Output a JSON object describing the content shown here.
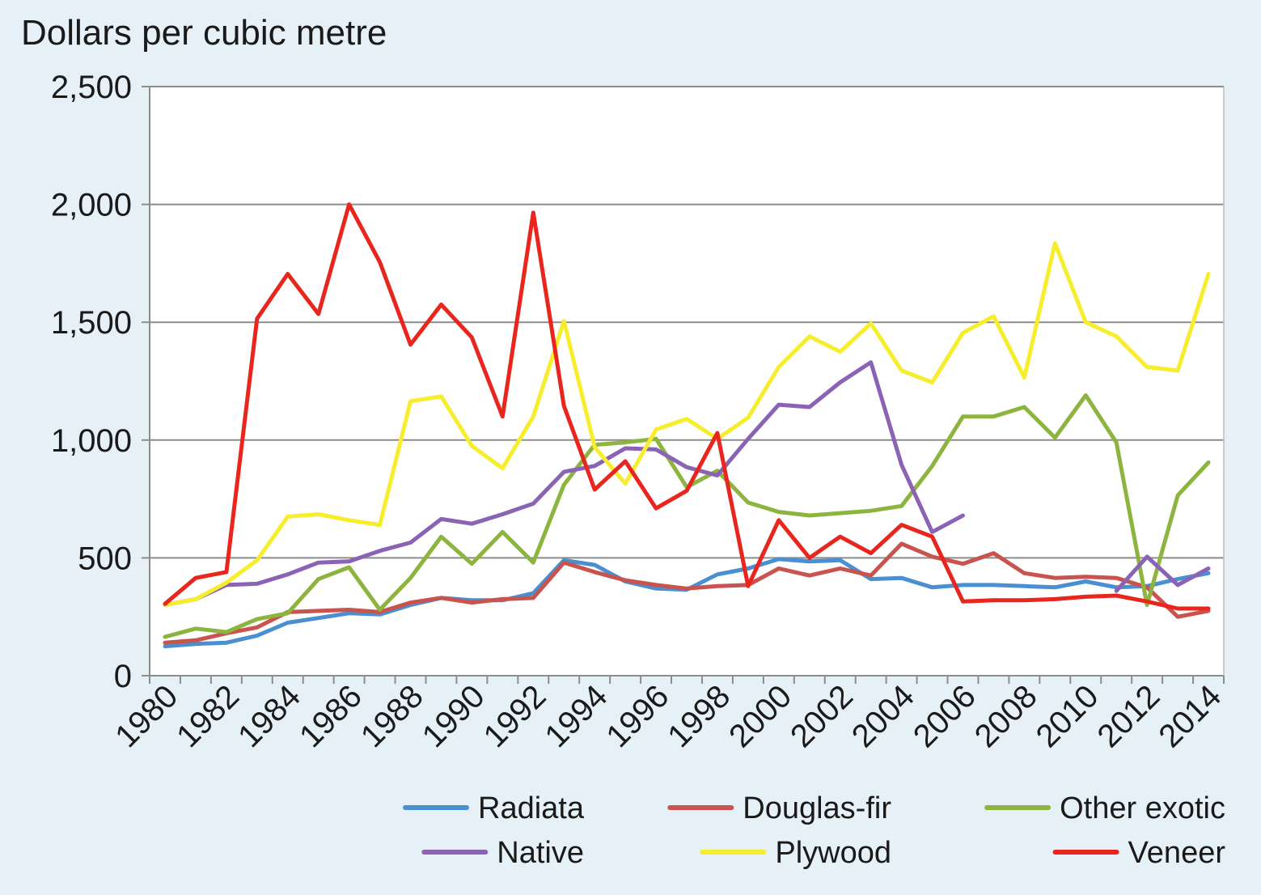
{
  "chart_data": {
    "type": "line",
    "title": "",
    "ylabel": "Dollars per cubic metre",
    "xlabel": "",
    "ylim": [
      0,
      2500
    ],
    "yticks": [
      0,
      500,
      1000,
      1500,
      2000,
      2500
    ],
    "ytick_labels": [
      "0",
      "500",
      "1,000",
      "1,500",
      "2,000",
      "2,500"
    ],
    "x": [
      1980,
      1981,
      1982,
      1983,
      1984,
      1985,
      1986,
      1987,
      1988,
      1989,
      1990,
      1991,
      1992,
      1993,
      1994,
      1995,
      1996,
      1997,
      1998,
      1999,
      2000,
      2001,
      2002,
      2003,
      2004,
      2005,
      2006,
      2007,
      2008,
      2009,
      2010,
      2011,
      2012,
      2013,
      2014
    ],
    "xtick_labels": [
      "1980",
      "1982",
      "1984",
      "1986",
      "1988",
      "1990",
      "1992",
      "1994",
      "1996",
      "1998",
      "2000",
      "2002",
      "2004",
      "2006",
      "2008",
      "2010",
      "2012",
      "2014"
    ],
    "grid": true,
    "legend_position": "bottom",
    "series": [
      {
        "name": "Radiata",
        "color": "#4a8fd1",
        "values": [
          125,
          135,
          140,
          170,
          225,
          245,
          265,
          260,
          300,
          330,
          320,
          320,
          350,
          490,
          470,
          400,
          370,
          365,
          430,
          455,
          495,
          485,
          490,
          410,
          415,
          375,
          385,
          385,
          380,
          375,
          400,
          375,
          380,
          410,
          435
        ]
      },
      {
        "name": "Douglas-fir",
        "color": "#c9534f",
        "values": [
          140,
          150,
          180,
          205,
          270,
          275,
          280,
          270,
          310,
          330,
          310,
          325,
          330,
          480,
          440,
          405,
          385,
          370,
          380,
          385,
          455,
          425,
          455,
          425,
          560,
          505,
          475,
          520,
          435,
          415,
          420,
          415,
          375,
          250,
          275
        ]
      },
      {
        "name": "Other exotic",
        "color": "#8db43e",
        "values": [
          165,
          200,
          185,
          240,
          265,
          410,
          460,
          280,
          415,
          590,
          475,
          610,
          480,
          810,
          980,
          990,
          1005,
          800,
          870,
          735,
          695,
          680,
          690,
          700,
          720,
          890,
          1100,
          1100,
          1140,
          1010,
          1190,
          990,
          300,
          765,
          905
        ]
      },
      {
        "name": "Native",
        "color": "#8a63b5",
        "values": [
          300,
          325,
          385,
          390,
          430,
          480,
          485,
          530,
          565,
          665,
          645,
          685,
          730,
          865,
          890,
          965,
          960,
          885,
          850,
          1005,
          1150,
          1140,
          1245,
          1330,
          895,
          610,
          680,
          null,
          null,
          null,
          null,
          360,
          505,
          385,
          455
        ]
      },
      {
        "name": "Plywood",
        "color": "#f6ee2c",
        "values": [
          300,
          325,
          395,
          490,
          675,
          685,
          660,
          640,
          1165,
          1185,
          975,
          880,
          1100,
          1505,
          970,
          815,
          1045,
          1090,
          1005,
          1095,
          1310,
          1440,
          1375,
          1495,
          1295,
          1245,
          1455,
          1525,
          1265,
          1835,
          1500,
          1440,
          1310,
          1295,
          1705
        ]
      },
      {
        "name": "Veneer",
        "color": "#e8261e",
        "values": [
          305,
          415,
          440,
          1515,
          1705,
          1535,
          2000,
          1755,
          1405,
          1575,
          1435,
          1100,
          1965,
          1145,
          790,
          910,
          710,
          785,
          1030,
          380,
          660,
          500,
          590,
          520,
          640,
          590,
          315,
          320,
          320,
          325,
          335,
          340,
          315,
          285,
          285
        ]
      }
    ]
  }
}
